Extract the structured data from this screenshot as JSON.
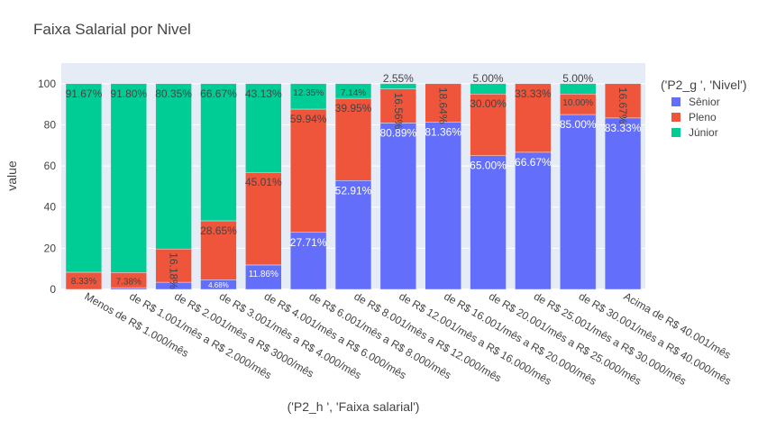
{
  "chart_data": {
    "type": "bar",
    "stacked": true,
    "title": "Faixa Salarial por Nivel",
    "xlabel": "('P2_h ', 'Faixa salarial')",
    "ylabel": "value",
    "ylim": [
      0,
      100
    ],
    "yticks": [
      0,
      20,
      40,
      60,
      80,
      100
    ],
    "grid": true,
    "legend_title": "('P2_g ', 'Nivel')",
    "legend_position": "right",
    "categories": [
      "Menos de R$ 1.000/mês",
      "de R$ 1.001/mês a R$ 2.000/mês",
      "de R$ 2.001/mês a R$ 3000/mês",
      "de R$ 3.001/mês a R$ 4.000/mês",
      "de R$ 4.001/mês a R$ 6.000/mês",
      "de R$ 6.001/mês a R$ 8.000/mês",
      "de R$ 8.001/mês a R$ 12.000/mês",
      "de R$ 12.001/mês a R$ 16.000/mês",
      "de R$ 16.001/mês a R$ 20.000/mês",
      "de R$ 20.001/mês a R$ 25.000/mês",
      "de R$ 25.001/mês a R$ 30.000/mês",
      "de R$ 30.001/mês a R$ 40.000/mês",
      "Acima de R$ 40.001/mês"
    ],
    "series": [
      {
        "name": "Sênior",
        "color": "#636efa",
        "values": [
          0,
          0.82,
          3.47,
          4.68,
          11.86,
          27.71,
          52.91,
          80.89,
          81.36,
          65.0,
          66.67,
          85.0,
          83.33
        ],
        "labels": [
          "",
          "",
          "",
          "4.68%",
          "11.86%",
          "27.71%",
          "52.91%",
          "80.89%",
          "81.36%",
          "65.00%",
          "66.67%",
          "85.00%",
          "83.33%"
        ]
      },
      {
        "name": "Pleno",
        "color": "#ef553b",
        "values": [
          8.33,
          7.38,
          16.18,
          28.65,
          45.01,
          59.94,
          39.95,
          16.56,
          18.64,
          30.0,
          33.33,
          10.0,
          16.67
        ],
        "labels": [
          "8.33%",
          "7.38%",
          "16.18%",
          "28.65%",
          "45.01%",
          "59.94%",
          "39.95%",
          "16.56%",
          "18.64%",
          "30.00%",
          "33.33%",
          "10.00%",
          "16.67%"
        ]
      },
      {
        "name": "Júnior",
        "color": "#00cc96",
        "values": [
          91.67,
          91.8,
          80.35,
          66.67,
          43.13,
          12.35,
          7.14,
          2.55,
          0,
          5.0,
          0,
          5.0,
          0
        ],
        "labels": [
          "91.67%",
          "91.80%",
          "80.35%",
          "66.67%",
          "43.13%",
          "12.35%",
          "7.14%",
          "2.55%",
          "",
          "5.00%",
          "",
          "5.00%",
          ""
        ]
      }
    ]
  }
}
